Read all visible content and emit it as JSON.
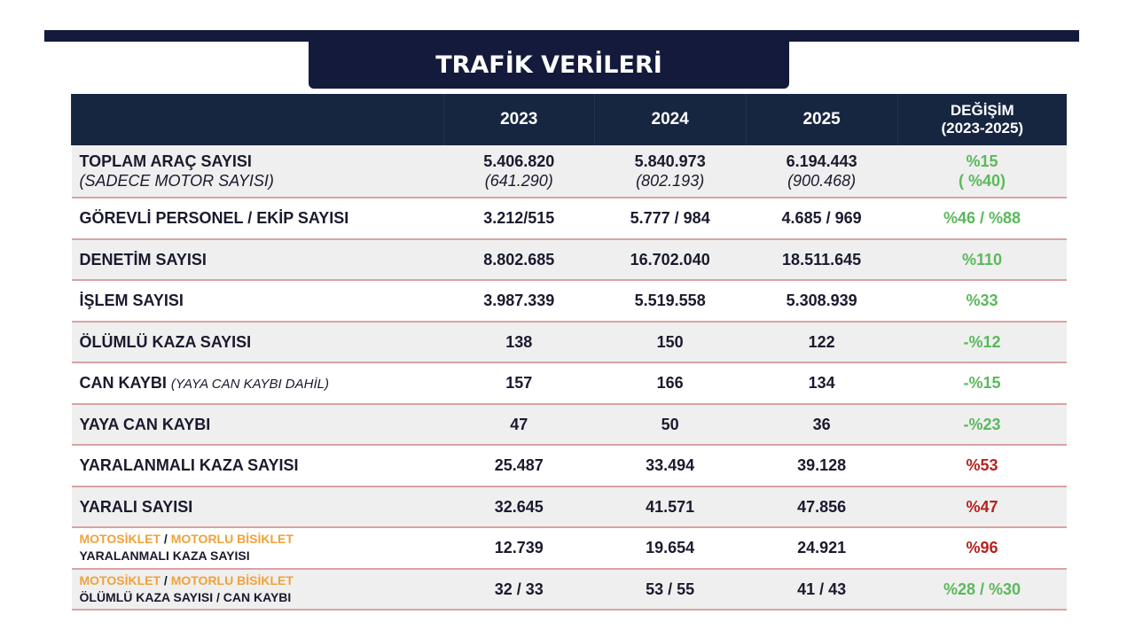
{
  "title": "TRAFİK VERİLERİ",
  "headers": {
    "c2023": "2023",
    "c2024": "2024",
    "c2025": "2025",
    "change_line1": "DEĞİŞİM",
    "change_line2": "(2023-2025)"
  },
  "colors": {
    "navy": "#141a3c",
    "header": "#172640",
    "increase_good": "#5cb85c",
    "increase_bad": "#b5231f",
    "highlight": "#efa23a"
  },
  "rows": [
    {
      "label": "TOPLAM ARAÇ SAYISI",
      "sublabel": "(SADECE MOTOR SAYISI)",
      "v2023": "5.406.820",
      "s2023": "(641.290)",
      "v2024": "5.840.973",
      "s2024": "(802.193)",
      "v2025": "6.194.443",
      "s2025": "(900.468)",
      "change": "%15",
      "subchange": "( %40)",
      "change_color": "green"
    },
    {
      "label": "GÖREVLİ PERSONEL / EKİP SAYISI",
      "v2023": "3.212/515",
      "v2024": "5.777 / 984",
      "v2025": "4.685 / 969",
      "change": "%46 / %88",
      "change_color": "green"
    },
    {
      "label": "DENETİM SAYISI",
      "v2023": "8.802.685",
      "v2024": "16.702.040",
      "v2025": "18.511.645",
      "change": "%110",
      "change_color": "green"
    },
    {
      "label": "İŞLEM SAYISI",
      "v2023": "3.987.339",
      "v2024": "5.519.558",
      "v2025": "5.308.939",
      "change": "%33",
      "change_color": "green"
    },
    {
      "label": "ÖLÜMLÜ KAZA SAYISI",
      "v2023": "138",
      "v2024": "150",
      "v2025": "122",
      "change": "-%12",
      "change_color": "green"
    },
    {
      "label": "CAN KAYBI",
      "sublabel": "(YAYA CAN KAYBI DAHİL)",
      "v2023": "157",
      "v2024": "166",
      "v2025": "134",
      "change": "-%15",
      "change_color": "green"
    },
    {
      "label": "YAYA CAN KAYBI",
      "v2023": "47",
      "v2024": "50",
      "v2025": "36",
      "change": "-%23",
      "change_color": "green"
    },
    {
      "label": "YARALANMALI KAZA SAYISI",
      "v2023": "25.487",
      "v2024": "33.494",
      "v2025": "39.128",
      "change": "%53",
      "change_color": "red"
    },
    {
      "label": "YARALI SAYISI",
      "v2023": "32.645",
      "v2024": "41.571",
      "v2025": "47.856",
      "change": "%47",
      "change_color": "red"
    },
    {
      "label_a": "MOTOSİKLET",
      "label_sep": " / ",
      "label_b": "MOTORLU BİSİKLET",
      "label2": "YARALANMALI KAZA SAYISI",
      "v2023": "12.739",
      "v2024": "19.654",
      "v2025": "24.921",
      "change": "%96",
      "change_color": "red"
    },
    {
      "label_a": "MOTOSİKLET",
      "label_sep": " / ",
      "label_b": "MOTORLU BİSİKLET",
      "label2": "ÖLÜMLÜ KAZA SAYISI / CAN KAYBI",
      "v2023": "32 / 33",
      "v2024": "53 / 55",
      "v2025": "41 / 43",
      "change": "%28 / %30",
      "change_color": "green"
    }
  ]
}
